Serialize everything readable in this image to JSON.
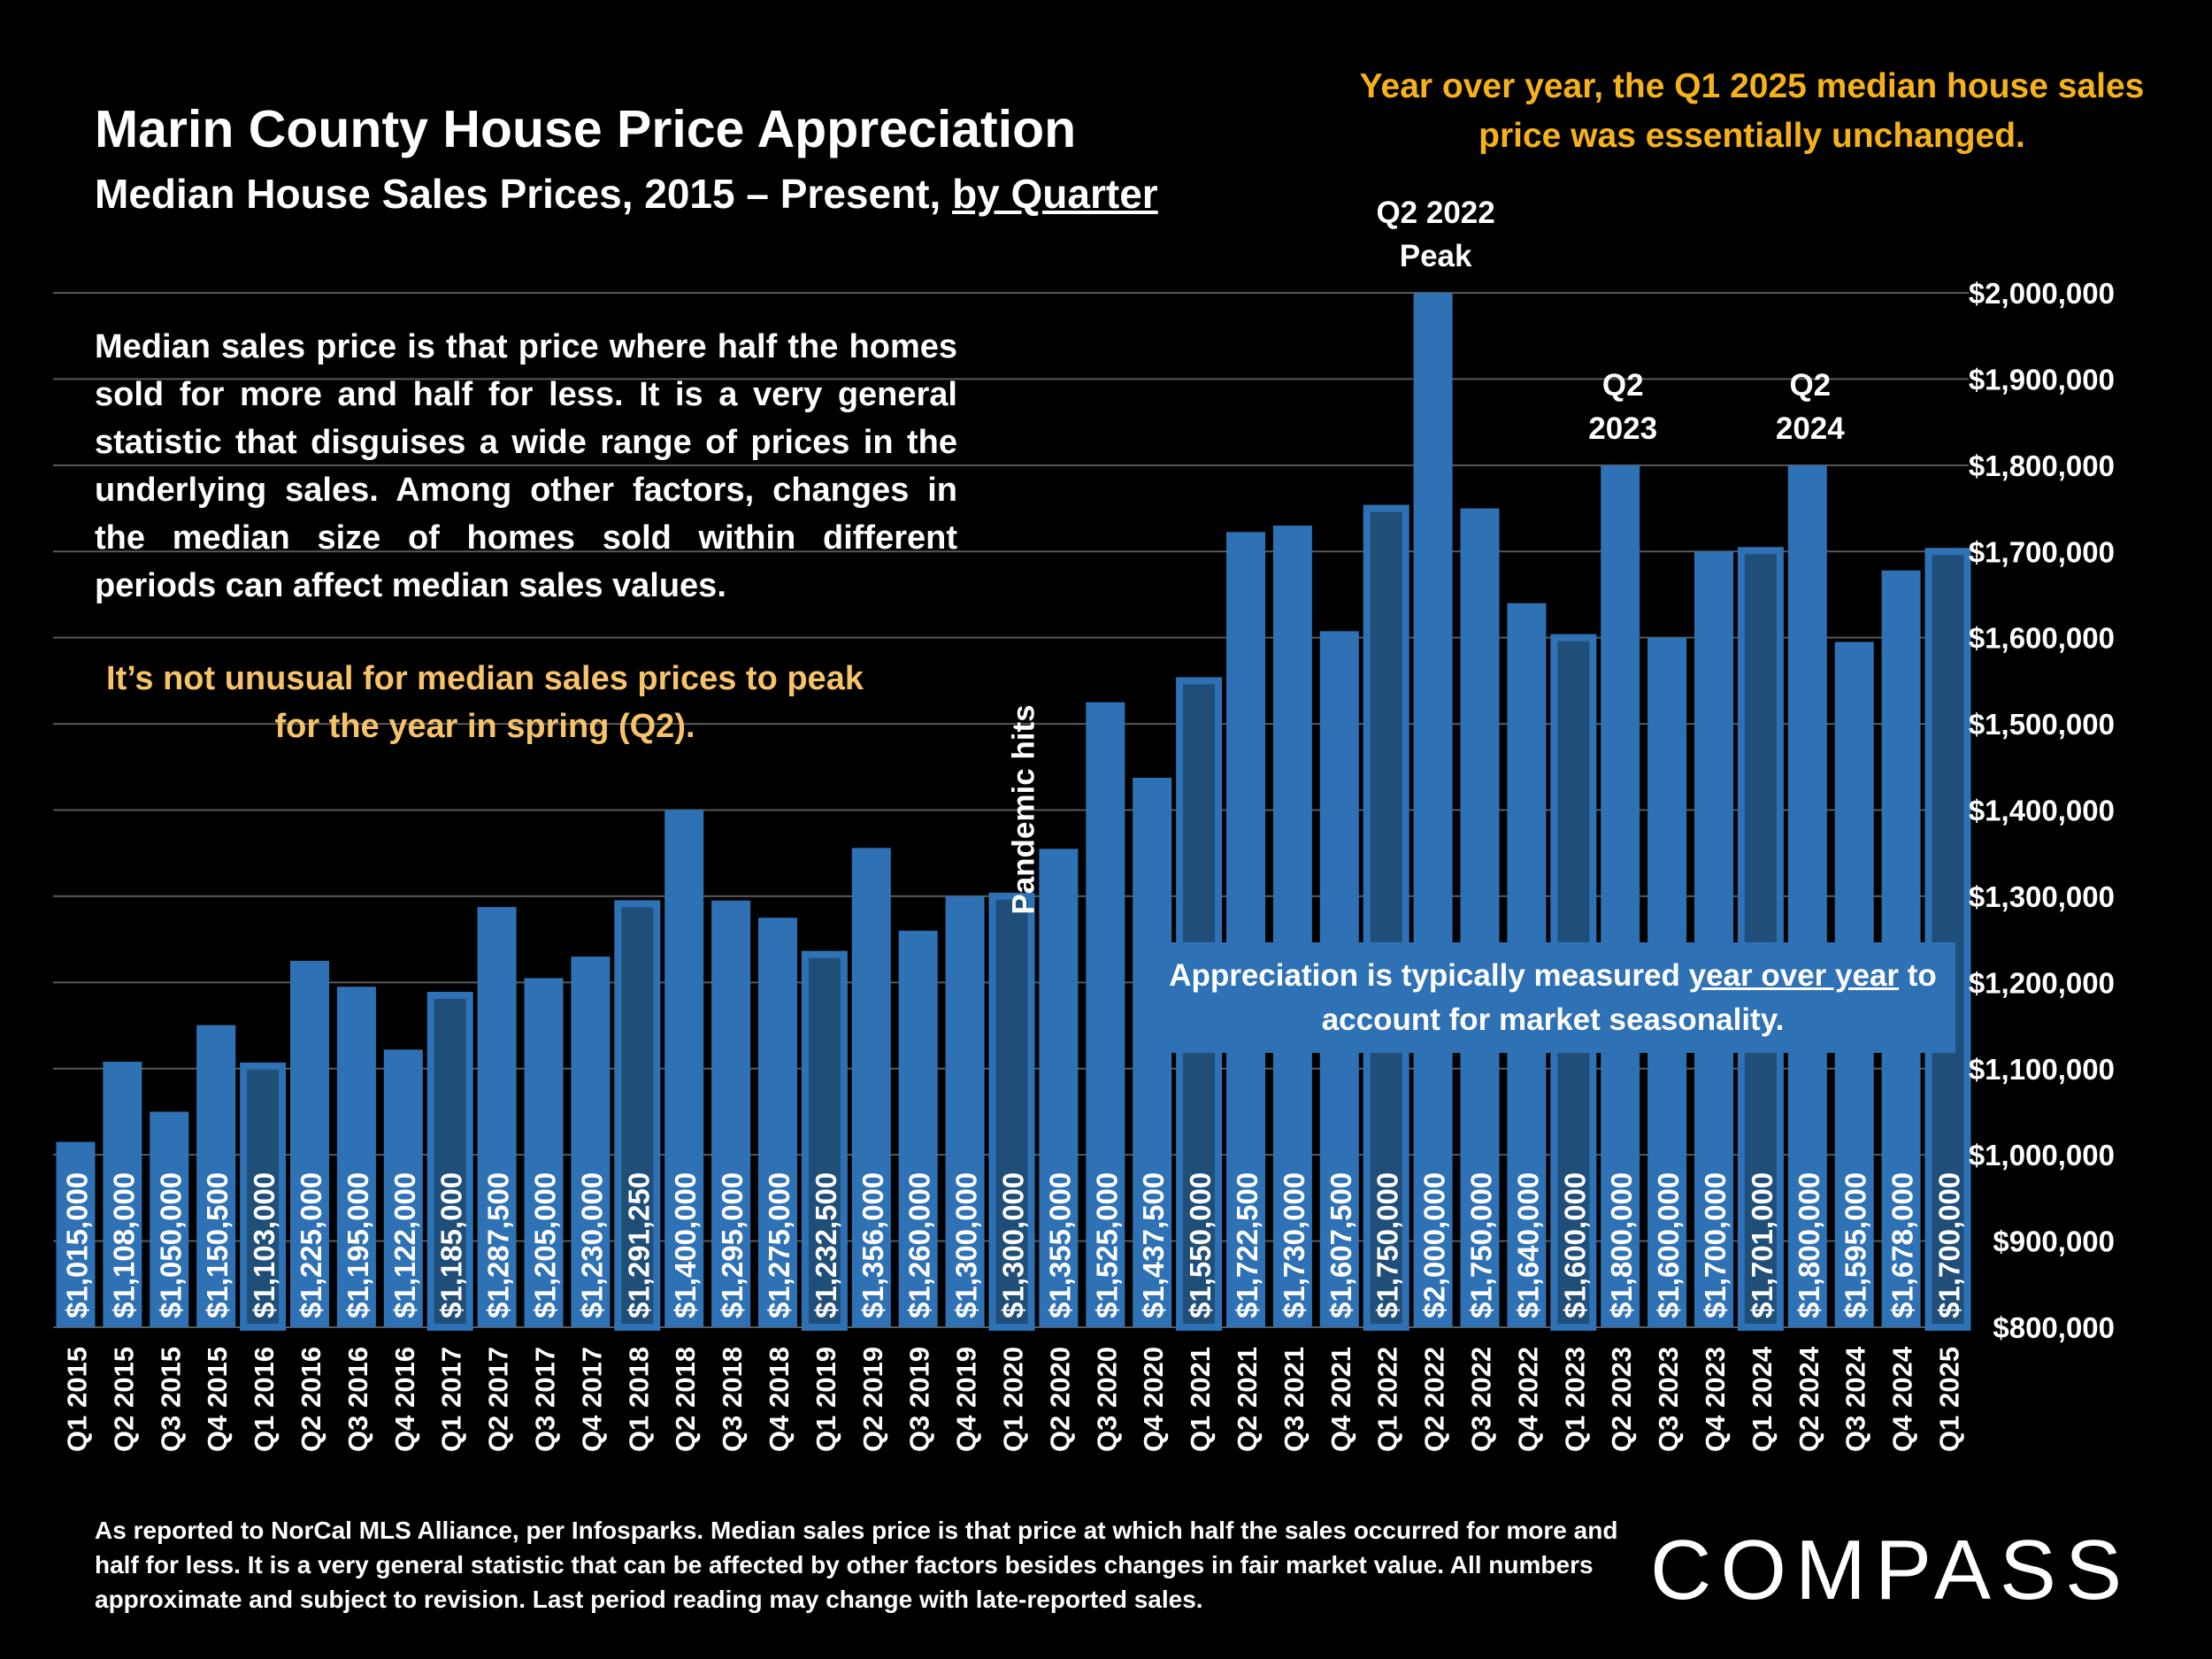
{
  "header": {
    "title": "Marin County House Price Appreciation",
    "subtitle_main": "Median House Sales Prices, 2015 – Present, ",
    "subtitle_underlined": "by Quarter"
  },
  "notes": {
    "yoy": "Year over year, the Q1 2025 median house sales price was essentially unchanged.",
    "description": "Median sales price is that price where half the homes sold for more and half for less. It is a very general statistic that disguises a wide range of prices in the underlying sales. Among other factors, changes in the median size of homes sold within different periods can affect median sales values.",
    "spring": "It’s not unusual for median sales prices to peak for the year in spring (Q2).",
    "appreciation_pre": "Appreciation is typically measured ",
    "appreciation_underlined": "year over year",
    "appreciation_post": " to account for market seasonality.",
    "footer": "As reported to NorCal MLS Alliance, per Infosparks. Median sales price is that price at which half the sales occurred for more and half for less. It is a very general statistic that can be affected by other factors besides changes in fair market value. All numbers approximate and subject to revision. Last period reading may change with late-reported sales."
  },
  "logo": {
    "text": "COMPASS"
  },
  "colors": {
    "bar": "#2e72b5",
    "bar_q1": "#1f4e79",
    "accent": "#f6b21b",
    "grid": "#595959"
  },
  "chart_data": {
    "type": "bar",
    "title": "Marin County House Price Appreciation",
    "xlabel": "",
    "ylabel": "",
    "ylim": [
      800000,
      2000000
    ],
    "yticks": [
      800000,
      900000,
      1000000,
      1100000,
      1200000,
      1300000,
      1400000,
      1500000,
      1600000,
      1700000,
      1800000,
      1900000,
      2000000
    ],
    "ytick_labels": [
      "$800,000",
      "$900,000",
      "$1,000,000",
      "$1,100,000",
      "$1,200,000",
      "$1,300,000",
      "$1,400,000",
      "$1,500,000",
      "$1,600,000",
      "$1,700,000",
      "$1,800,000",
      "$1,900,000",
      "$2,000,000"
    ],
    "categories": [
      "Q1 2015",
      "Q2 2015",
      "Q3 2015",
      "Q4 2015",
      "Q1 2016",
      "Q2 2016",
      "Q3 2016",
      "Q4 2016",
      "Q1 2017",
      "Q2 2017",
      "Q3 2017",
      "Q4 2017",
      "Q1 2018",
      "Q2 2018",
      "Q3 2018",
      "Q4 2018",
      "Q1 2019",
      "Q2 2019",
      "Q3 2019",
      "Q4 2019",
      "Q1 2020",
      "Q2 2020",
      "Q3 2020",
      "Q4 2020",
      "Q1 2021",
      "Q2 2021",
      "Q3 2021",
      "Q4 2021",
      "Q1 2022",
      "Q2 2022",
      "Q3 2022",
      "Q4 2022",
      "Q1 2023",
      "Q2 2023",
      "Q3 2023",
      "Q4 2023",
      "Q1 2024",
      "Q2 2024",
      "Q3 2024",
      "Q4 2024",
      "Q1 2025"
    ],
    "values": [
      1015000,
      1108000,
      1050000,
      1150500,
      1103000,
      1225000,
      1195000,
      1122000,
      1185000,
      1287500,
      1205000,
      1230000,
      1291250,
      1400000,
      1295000,
      1275000,
      1232500,
      1356000,
      1260000,
      1300000,
      1300000,
      1355000,
      1525000,
      1437500,
      1550000,
      1722500,
      1730000,
      1607500,
      1750000,
      2000000,
      1750000,
      1640000,
      1600000,
      1800000,
      1600000,
      1700000,
      1701000,
      1800000,
      1595000,
      1678000,
      1700000
    ],
    "data_labels": [
      "$1,015,000",
      "$1,108,000",
      "$1,050,000",
      "$1,150,500",
      "$1,103,000",
      "$1,225,000",
      "$1,195,000",
      "$1,122,000",
      "$1,185,000",
      "$1,287,500",
      "$1,205,000",
      "$1,230,000",
      "$1,291,250",
      "$1,400,000",
      "$1,295,000",
      "$1,275,000",
      "$1,232,500",
      "$1,356,000",
      "$1,260,000",
      "$1,300,000",
      "$1,300,000",
      "$1,355,000",
      "$1,525,000",
      "$1,437,500",
      "$1,550,000",
      "$1,722,500",
      "$1,730,000",
      "$1,607,500",
      "$1,750,000",
      "$2,000,000",
      "$1,750,000",
      "$1,640,000",
      "$1,600,000",
      "$1,800,000",
      "$1,600,000",
      "$1,700,000",
      "$1,701,000",
      "$1,800,000",
      "$1,595,000",
      "$1,678,000",
      "$1,700,000"
    ],
    "highlighted_q1_indices": [
      4,
      8,
      12,
      16,
      20,
      24,
      28,
      32,
      36,
      40
    ],
    "annotations": [
      {
        "lines": [
          "Q2 2022",
          "Peak"
        ],
        "category": "Q2 2022"
      },
      {
        "lines": [
          "Q2",
          "2023"
        ],
        "category": "Q2 2023"
      },
      {
        "lines": [
          "Q2",
          "2024"
        ],
        "category": "Q2 2024"
      },
      {
        "lines": [
          "Pandemic hits"
        ],
        "category": "Q1 2020",
        "rotated": true
      }
    ],
    "grid": true,
    "y_axis_side": "right"
  }
}
